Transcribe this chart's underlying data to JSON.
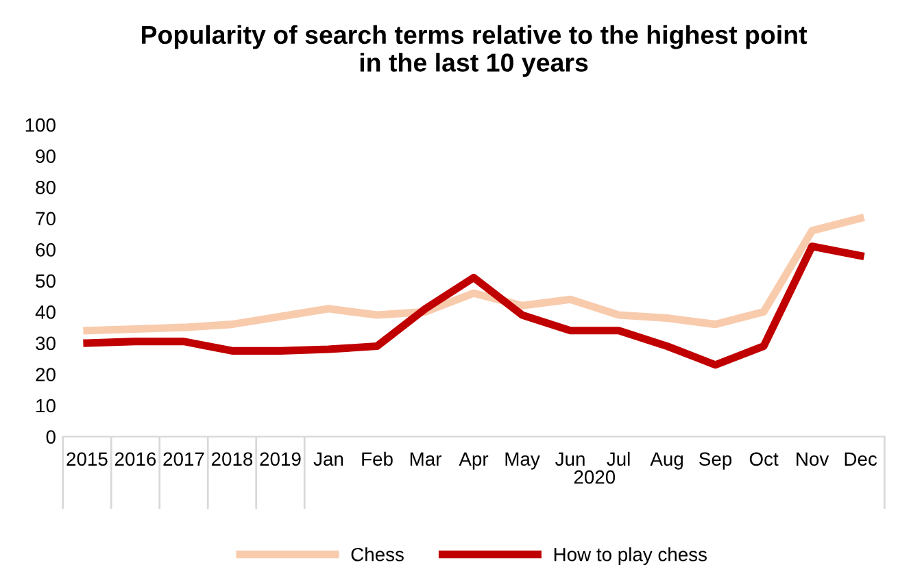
{
  "chart_data": {
    "type": "line",
    "title": "Popularity of search terms relative to the highest point\nin the last 10 years",
    "categories": [
      "2015",
      "2016",
      "2017",
      "2018",
      "2019",
      "Jan",
      "Feb",
      "Mar",
      "Apr",
      "May",
      "Jun",
      "Jul",
      "Aug",
      "Sep",
      "Oct",
      "Nov",
      "Dec"
    ],
    "annotations": [
      "2020"
    ],
    "series": [
      {
        "name": "Chess",
        "color": "#f8cbad",
        "values": [
          34,
          34.5,
          35,
          36,
          38.5,
          41,
          39,
          40,
          46,
          42,
          44,
          39,
          38,
          36,
          40,
          66,
          70
        ]
      },
      {
        "name": "How to play chess",
        "color": "#c00000",
        "values": [
          30,
          30.5,
          30.5,
          27.5,
          27.5,
          28,
          29,
          41,
          51,
          39,
          34,
          34,
          29,
          23,
          29,
          61,
          58
        ]
      }
    ],
    "ylim": [
      0,
      100
    ],
    "yticks": [
      0,
      10,
      20,
      30,
      40,
      50,
      60,
      70,
      80,
      90,
      100
    ],
    "grid": false,
    "legend": "bottom",
    "line_style": "solid",
    "marker": "none"
  }
}
